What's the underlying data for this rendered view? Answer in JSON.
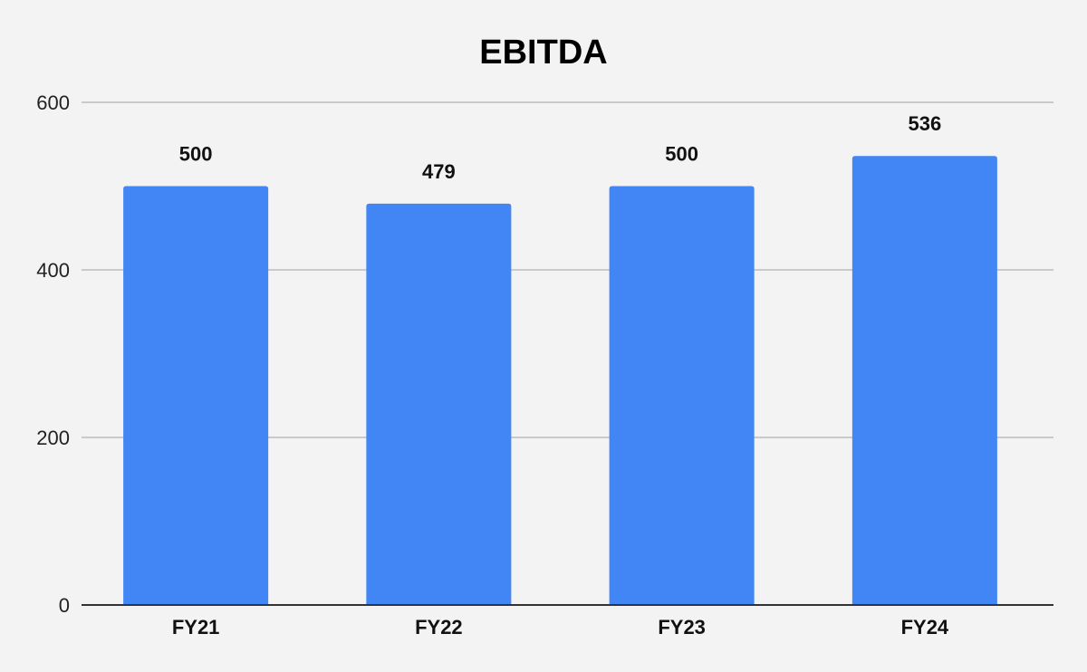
{
  "chart_data": {
    "type": "bar",
    "title": "EBITDA",
    "xlabel": "",
    "ylabel": "",
    "categories": [
      "FY21",
      "FY22",
      "FY23",
      "FY24"
    ],
    "values": [
      500,
      479,
      500,
      536
    ],
    "data_labels": [
      "500",
      "479",
      "500",
      "536"
    ],
    "ylim": [
      0,
      600
    ],
    "yticks": [
      0,
      200,
      400,
      600
    ],
    "ytick_labels": [
      "0",
      "200",
      "400",
      "600"
    ],
    "grid": true,
    "legend": "none",
    "colors": {
      "bar": "#4285f4",
      "background": "#f3f3f3",
      "gridline": "#bdbdbd",
      "baseline": "#333333"
    }
  }
}
